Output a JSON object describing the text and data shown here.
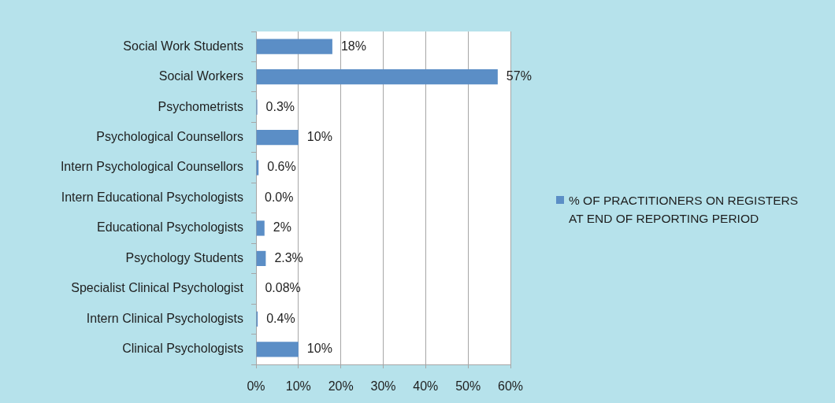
{
  "chart_data": {
    "type": "bar",
    "orientation": "horizontal",
    "categories": [
      "Social Work Students",
      "Social Workers",
      "Psychometrists",
      "Psychological Counsellors",
      "Intern Psychological Counsellors",
      "Intern Educational Psychologists",
      "Educational Psychologists",
      "Psychology Students",
      "Specialist Clinical Psychologist",
      "Intern Clinical Psychologists",
      "Clinical Psychologists"
    ],
    "series": [
      {
        "name": "% OF PRACTITIONERS ON REGISTERS AT END OF REPORTING PERIOD",
        "color": "#5b8ec6",
        "values": [
          18,
          57,
          0.3,
          10,
          0.6,
          0,
          2,
          2.3,
          0.08,
          0.4,
          10
        ],
        "value_labels": [
          "18%",
          "57%",
          "0.3%",
          "10%",
          "0.6%",
          "0.0%",
          "2%",
          "2.3%",
          "0.08%",
          "0.4%",
          "10%"
        ]
      }
    ],
    "xlim": [
      0,
      60
    ],
    "xticks": [
      {
        "value": 0,
        "label": "0%"
      },
      {
        "value": 10,
        "label": "10%"
      },
      {
        "value": 20,
        "label": "20%"
      },
      {
        "value": 30,
        "label": "30%"
      },
      {
        "value": 40,
        "label": "40%"
      },
      {
        "value": 50,
        "label": "50%"
      },
      {
        "value": 60,
        "label": "60%"
      }
    ],
    "grid": "x",
    "legend": "right"
  }
}
